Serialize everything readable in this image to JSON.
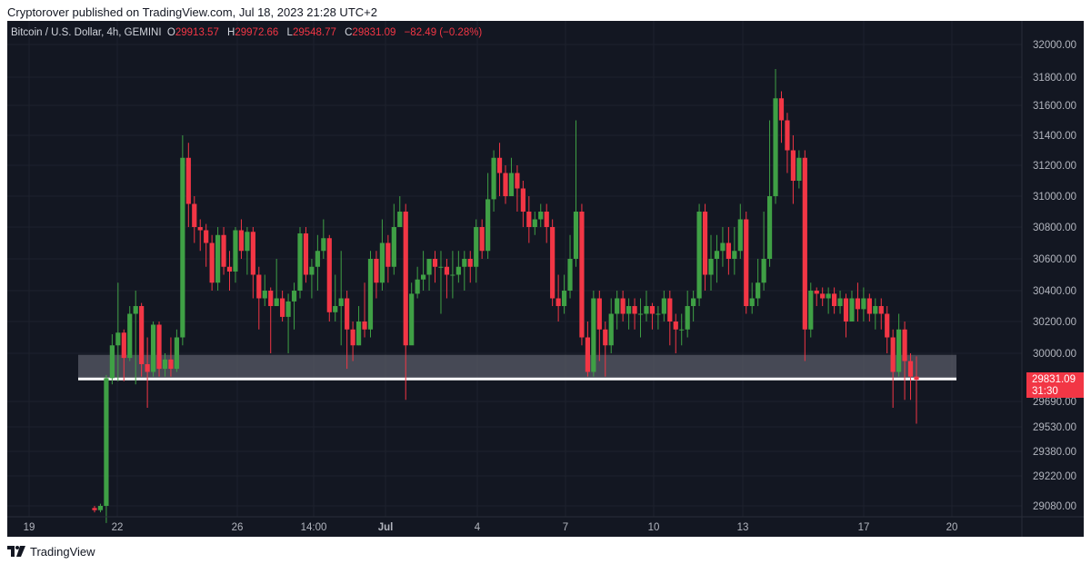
{
  "publisher_line": "Cryptorover published on TradingView.com, Jul 18, 2023 21:28 UTC+2",
  "legend": {
    "symbol": "Bitcoin / U.S. Dollar, 4h, GEMINI",
    "open_label": "O",
    "open": "29913.57",
    "high_label": "H",
    "high": "29972.66",
    "low_label": "L",
    "low": "29548.77",
    "close_label": "C",
    "close": "29831.09",
    "change": "−82.49 (−0.28%)"
  },
  "price_tag": {
    "price": "29831.09",
    "countdown": "31:30"
  },
  "footer": {
    "brand": "TradingView"
  },
  "colors": {
    "background": "#131722",
    "up": "#26a69a",
    "up_candle": "#3fa045",
    "down": "#f23645",
    "support_zone": "#5d606b",
    "support_line": "#ffffff"
  },
  "chart_data": {
    "type": "candlestick",
    "title": "Bitcoin / U.S. Dollar, 4h, GEMINI",
    "xlabel": "",
    "ylabel": "",
    "y_axis": {
      "ticks": [
        "32000.00",
        "31800.00",
        "31600.00",
        "31400.00",
        "31200.00",
        "31000.00",
        "30800.00",
        "30600.00",
        "30400.00",
        "30200.00",
        "30000.00",
        "29690.00",
        "29530.00",
        "29380.00",
        "29220.00",
        "29080.00"
      ],
      "tick_values": [
        32000,
        31800,
        31600,
        31400,
        31200,
        31000,
        30800,
        30600,
        30400,
        30200,
        30000,
        29690,
        29530,
        29380,
        29220,
        29080
      ]
    },
    "x_axis": {
      "ticks": [
        "19",
        "22",
        "26",
        "14:00",
        "Jul",
        "4",
        "7",
        "10",
        "13",
        "17",
        "20"
      ],
      "bold": [
        "Jul"
      ]
    },
    "support_zone": {
      "from": 29830,
      "to": 29990
    },
    "support_line": 29835,
    "annotations": [],
    "candles": [
      [
        29070,
        29060,
        29080,
        29050
      ],
      [
        29060,
        29080,
        29050,
        29090
      ],
      [
        29080,
        29840,
        29860,
        29000
      ],
      [
        29840,
        30050,
        30120,
        29800
      ],
      [
        30050,
        30130,
        30450,
        29820
      ],
      [
        30130,
        29970,
        30150,
        29820
      ],
      [
        29970,
        30250,
        30300,
        29950
      ],
      [
        30250,
        30300,
        30400,
        29800
      ],
      [
        30300,
        29930,
        30320,
        29850
      ],
      [
        29930,
        29880,
        30100,
        29650
      ],
      [
        29880,
        30180,
        30200,
        29850
      ],
      [
        30180,
        29900,
        30200,
        29850
      ],
      [
        29900,
        29960,
        30000,
        29850
      ],
      [
        29960,
        29900,
        30100,
        29850
      ],
      [
        29900,
        30100,
        30150,
        29880
      ],
      [
        30100,
        31250,
        31400,
        30050
      ],
      [
        31250,
        30950,
        31350,
        30800
      ],
      [
        30950,
        30800,
        31000,
        30700
      ],
      [
        30800,
        30780,
        30850,
        30650
      ],
      [
        30780,
        30700,
        30820,
        30550
      ],
      [
        30700,
        30450,
        30750,
        30400
      ],
      [
        30450,
        30750,
        30800,
        30400
      ],
      [
        30750,
        30550,
        30800,
        30500
      ],
      [
        30550,
        30520,
        30650,
        30400
      ],
      [
        30520,
        30780,
        30800,
        30450
      ],
      [
        30780,
        30650,
        30850,
        30600
      ],
      [
        30650,
        30770,
        30800,
        30500
      ],
      [
        30770,
        30500,
        30800,
        30350
      ],
      [
        30500,
        30350,
        30550,
        30150
      ],
      [
        30350,
        30400,
        30500,
        30300
      ],
      [
        30400,
        30300,
        30420,
        30000
      ],
      [
        30300,
        30350,
        30600,
        30300
      ],
      [
        30350,
        30230,
        30400,
        30200
      ],
      [
        30230,
        30330,
        30380,
        30000
      ],
      [
        30330,
        30400,
        30450,
        30150
      ],
      [
        30400,
        30760,
        30800,
        30350
      ],
      [
        30760,
        30500,
        30800,
        30450
      ],
      [
        30500,
        30550,
        30600,
        30350
      ],
      [
        30550,
        30650,
        30750,
        30400
      ],
      [
        30650,
        30730,
        30850,
        30600
      ],
      [
        30730,
        30260,
        30750,
        30200
      ],
      [
        30260,
        30300,
        30500,
        30200
      ],
      [
        30300,
        30350,
        30650,
        30050
      ],
      [
        30350,
        30150,
        30400,
        29900
      ],
      [
        30150,
        30050,
        30200,
        29950
      ],
      [
        30050,
        30200,
        30300,
        30050
      ],
      [
        30200,
        30150,
        30450,
        30100
      ],
      [
        30150,
        30600,
        30650,
        30100
      ],
      [
        30600,
        30450,
        30650,
        30350
      ],
      [
        30450,
        30700,
        30850,
        30400
      ],
      [
        30700,
        30550,
        30750,
        30450
      ],
      [
        30550,
        30800,
        30950,
        30500
      ],
      [
        30800,
        30900,
        31000,
        30800
      ],
      [
        30900,
        30050,
        30950,
        29700
      ],
      [
        30050,
        30380,
        30450,
        30300
      ],
      [
        30380,
        30470,
        30550,
        30350
      ],
      [
        30470,
        30500,
        30650,
        30400
      ],
      [
        30500,
        30600,
        30600,
        30400
      ],
      [
        30600,
        30550,
        30650,
        30450
      ],
      [
        30550,
        30550,
        30650,
        30250
      ],
      [
        30550,
        30500,
        30600,
        30350
      ],
      [
        30500,
        30500,
        30650,
        30350
      ],
      [
        30500,
        30550,
        30650,
        30450
      ],
      [
        30550,
        30600,
        30650,
        30400
      ],
      [
        30600,
        30550,
        30650,
        30450
      ],
      [
        30550,
        30800,
        30850,
        30450
      ],
      [
        30800,
        30650,
        30850,
        30600
      ],
      [
        30650,
        30980,
        31150,
        30600
      ],
      [
        30980,
        31250,
        31300,
        30900
      ],
      [
        31250,
        31150,
        31350,
        31000
      ],
      [
        31150,
        31000,
        31200,
        30950
      ],
      [
        31000,
        31150,
        31250,
        31000
      ],
      [
        31150,
        31050,
        31200,
        30900
      ],
      [
        31050,
        30900,
        31100,
        30800
      ],
      [
        30900,
        30800,
        31000,
        30700
      ],
      [
        30800,
        30850,
        30900,
        30750
      ],
      [
        30850,
        30900,
        30950,
        30800
      ],
      [
        30900,
        30800,
        30950,
        30700
      ],
      [
        30800,
        30350,
        30850,
        30300
      ],
      [
        30350,
        30300,
        30500,
        30200
      ],
      [
        30300,
        30400,
        30500,
        30250
      ],
      [
        30400,
        30600,
        30750,
        30350
      ],
      [
        30600,
        30900,
        31500,
        30550
      ],
      [
        30900,
        30100,
        30950,
        30050
      ],
      [
        30100,
        29880,
        30200,
        29850
      ],
      [
        29880,
        30350,
        30400,
        29850
      ],
      [
        30350,
        30150,
        30400,
        29950
      ],
      [
        30150,
        30050,
        30200,
        29850
      ],
      [
        30050,
        30250,
        30350,
        30000
      ],
      [
        30250,
        30350,
        30400,
        30150
      ],
      [
        30350,
        30250,
        30400,
        30200
      ],
      [
        30250,
        30300,
        30350,
        30150
      ],
      [
        30300,
        30250,
        30350,
        30150
      ],
      [
        30250,
        30250,
        30350,
        30100
      ],
      [
        30250,
        30300,
        30400,
        30200
      ],
      [
        30300,
        30250,
        30320,
        30150
      ],
      [
        30250,
        30250,
        30300,
        30150
      ],
      [
        30250,
        30350,
        30400,
        30200
      ],
      [
        30350,
        30200,
        30400,
        30050
      ],
      [
        30200,
        30150,
        30250,
        30000
      ],
      [
        30150,
        30150,
        30250,
        30050
      ],
      [
        30150,
        30300,
        30400,
        30100
      ],
      [
        30300,
        30350,
        30400,
        30200
      ],
      [
        30350,
        30900,
        30950,
        30300
      ],
      [
        30900,
        30500,
        30950,
        30400
      ],
      [
        30500,
        30600,
        30750,
        30400
      ],
      [
        30600,
        30650,
        30750,
        30450
      ],
      [
        30650,
        30700,
        30800,
        30550
      ],
      [
        30700,
        30600,
        30800,
        30500
      ],
      [
        30600,
        30650,
        30800,
        30500
      ],
      [
        30650,
        30850,
        30950,
        30600
      ],
      [
        30850,
        30300,
        30900,
        30250
      ],
      [
        30300,
        30350,
        30450,
        30250
      ],
      [
        30350,
        30450,
        30600,
        30300
      ],
      [
        30450,
        30600,
        30900,
        30400
      ],
      [
        30600,
        31000,
        31500,
        30550
      ],
      [
        31000,
        31650,
        31850,
        30950
      ],
      [
        31650,
        31500,
        31700,
        31350
      ],
      [
        31500,
        31300,
        31550,
        31150
      ],
      [
        31300,
        31100,
        31400,
        30950
      ],
      [
        31100,
        31250,
        31300,
        31050
      ],
      [
        31250,
        30150,
        31300,
        29950
      ],
      [
        30150,
        30400,
        30450,
        30100
      ],
      [
        30400,
        30380,
        30420,
        30300
      ],
      [
        30380,
        30350,
        30420,
        30300
      ],
      [
        30350,
        30380,
        30420,
        30250
      ],
      [
        30380,
        30300,
        30420,
        30250
      ],
      [
        30300,
        30350,
        30400,
        30250
      ],
      [
        30350,
        30200,
        30380,
        30100
      ],
      [
        30200,
        30350,
        30400,
        30200
      ],
      [
        30350,
        30280,
        30450,
        30200
      ],
      [
        30280,
        30350,
        30420,
        30200
      ],
      [
        30350,
        30250,
        30380,
        30200
      ],
      [
        30250,
        30300,
        30350,
        30150
      ],
      [
        30300,
        30250,
        30350,
        30150
      ],
      [
        30250,
        30100,
        30300,
        30000
      ],
      [
        30100,
        29880,
        30150,
        29650
      ],
      [
        29880,
        30150,
        30250,
        29850
      ],
      [
        30150,
        29950,
        30200,
        29700
      ],
      [
        29950,
        29850,
        30000,
        29700
      ],
      [
        29850,
        29830,
        29980,
        29550
      ]
    ]
  }
}
